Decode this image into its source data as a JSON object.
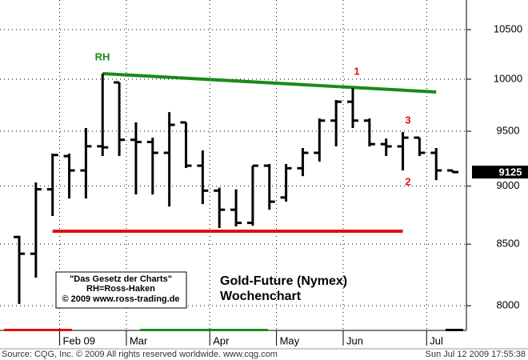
{
  "chart_data": {
    "type": "ohlc",
    "title": "Gold-Future (Nymex)",
    "subtitle": "Wochenchart",
    "note_lines": [
      "\"Das Gesetz der Charts\"",
      "RH=Ross-Haken",
      "© 2009 www.ross-trading.de"
    ],
    "source": "Source: CQG, Inc. © 2009 All rights reserved worldwide. www.cqg.com",
    "timestamp": "Sun Jul 12 2009 17:55:38",
    "annotations": [
      "RH",
      "1",
      "3",
      "2"
    ],
    "categories": [
      null,
      null,
      null,
      "Feb 09",
      null,
      null,
      null,
      "Mar",
      null,
      null,
      null,
      null,
      "Apr",
      null,
      null,
      null,
      "May",
      null,
      null,
      null,
      "Jun",
      null,
      null,
      null,
      null,
      "Jul",
      null
    ],
    "open": [
      8560,
      8420,
      8972,
      9270,
      9140,
      9360,
      9968,
      9420,
      9400,
      9300,
      9583,
      9183,
      8960,
      8793,
      8680,
      9183,
      8900,
      9160,
      9300,
      9600,
      9780,
      9600,
      9380,
      9359,
      9440,
      9300,
      9140
    ],
    "high": [
      8570,
      9032,
      9293,
      9293,
      9530,
      10055,
      9968,
      9583,
      9440,
      9681,
      9583,
      9322,
      8986,
      8972,
      9183,
      9198,
      9198,
      9344,
      9620,
      9797,
      9913,
      9620,
      9432,
      9492,
      9440,
      9344,
      9140
    ],
    "low": [
      8014,
      8224,
      8739,
      8891,
      8891,
      9271,
      9271,
      8926,
      8926,
      8821,
      9162,
      8842,
      8636,
      8650,
      8656,
      8793,
      8863,
      9089,
      9220,
      9359,
      9530,
      9359,
      9271,
      9140,
      9271,
      9053,
      9118
    ],
    "close": [
      8420,
      8972,
      9280,
      9140,
      9360,
      9350,
      9420,
      9400,
      9300,
      9560,
      9183,
      8960,
      8793,
      8680,
      9183,
      8863,
      9160,
      9300,
      9600,
      9780,
      9600,
      9380,
      9359,
      9440,
      9300,
      9140,
      9125
    ],
    "color": "#000000",
    "last": 9125,
    "trendlines": [
      {
        "color": "#1a8a1a",
        "from": [
          5,
          10055
        ],
        "to": [
          25,
          9874
        ]
      },
      {
        "color": "#e01010",
        "from": [
          2,
          8609
        ],
        "to": [
          23,
          8609
        ]
      }
    ],
    "log_scale": true,
    "ylim": [
      7826,
      10811
    ],
    "yticks": [
      8000,
      8500,
      9000,
      9500,
      10000,
      10500
    ],
    "grid": true
  }
}
